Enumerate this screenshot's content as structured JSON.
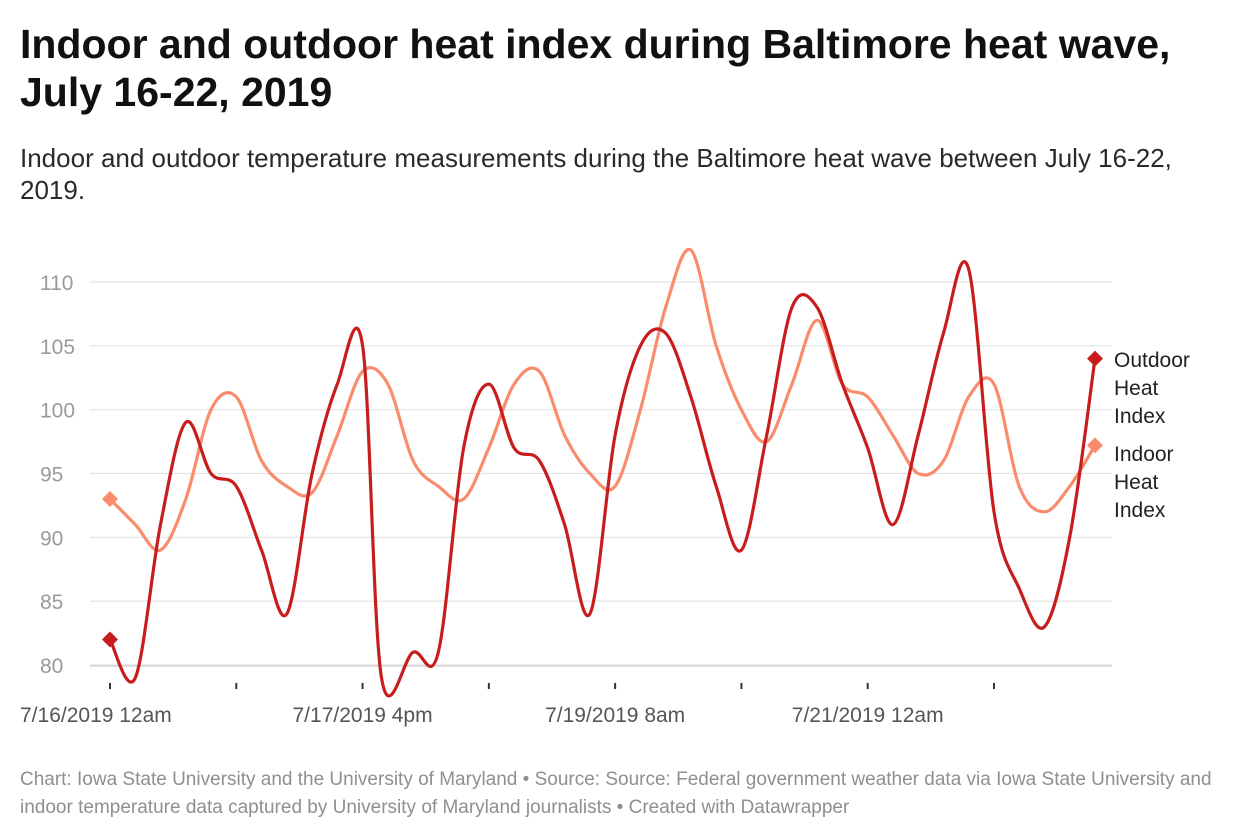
{
  "header": {
    "title": "Indoor and outdoor heat index during Baltimore heat wave, July 16-22, 2019",
    "subtitle": "Indoor and outdoor temperature measurements during the Baltimore heat wave between July 16-22, 2019."
  },
  "footer": {
    "text": "Chart: Iowa State University and the University of Maryland • Source: Source: Federal government weather data via Iowa State University and indoor temperature data captured by University of Maryland journalists • Created with Datawrapper"
  },
  "chart_data": {
    "type": "line",
    "title": "Indoor and outdoor heat index during Baltimore heat wave, July 16-22, 2019",
    "subtitle": "Indoor and outdoor temperature measurements during the Baltimore heat wave between July 16-22, 2019.",
    "xlabel": "",
    "ylabel": "",
    "x_unit": "hours since 7/16/2019 12am",
    "xlim": [
      0,
      156
    ],
    "ylim": [
      79,
      113
    ],
    "yticks": [
      80,
      85,
      90,
      95,
      100,
      105,
      110
    ],
    "xticks": [
      0,
      20,
      40,
      60,
      80,
      100,
      120,
      140
    ],
    "xtick_labels": [
      {
        "x": 0,
        "label": "7/16/2019 12am"
      },
      {
        "x": 40,
        "label": "7/17/2019 4pm"
      },
      {
        "x": 80,
        "label": "7/19/2019 8am"
      },
      {
        "x": 120,
        "label": "7/21/2019 12am"
      }
    ],
    "grid": true,
    "legend": "inline-right",
    "series": [
      {
        "name": "Outdoor Heat Index",
        "color": "#c71e1d",
        "legend_lines": [
          "Outdoor",
          "Heat",
          "Index"
        ],
        "points": [
          [
            0,
            82
          ],
          [
            4,
            79
          ],
          [
            8,
            91
          ],
          [
            12,
            99
          ],
          [
            16,
            95
          ],
          [
            20,
            94
          ],
          [
            24,
            89
          ],
          [
            28,
            84
          ],
          [
            32,
            95
          ],
          [
            36,
            102
          ],
          [
            40,
            105
          ],
          [
            43,
            79
          ],
          [
            48,
            81
          ],
          [
            52,
            81
          ],
          [
            56,
            97
          ],
          [
            60,
            102
          ],
          [
            64,
            97
          ],
          [
            68,
            96
          ],
          [
            72,
            91
          ],
          [
            76,
            84
          ],
          [
            80,
            98
          ],
          [
            84,
            105
          ],
          [
            88,
            106
          ],
          [
            92,
            101
          ],
          [
            96,
            94
          ],
          [
            100,
            89
          ],
          [
            104,
            98
          ],
          [
            108,
            108
          ],
          [
            112,
            108
          ],
          [
            116,
            102
          ],
          [
            120,
            97
          ],
          [
            124,
            91
          ],
          [
            128,
            98
          ],
          [
            132,
            106
          ],
          [
            136,
            111
          ],
          [
            140,
            92
          ],
          [
            144,
            86
          ],
          [
            148,
            83
          ],
          [
            152,
            90
          ],
          [
            156,
            104
          ]
        ]
      },
      {
        "name": "Indoor Heat Index",
        "color": "#fa8c6e",
        "legend_lines": [
          "Indoor",
          "Heat",
          "Index"
        ],
        "points": [
          [
            0,
            93
          ],
          [
            4,
            91
          ],
          [
            8,
            89
          ],
          [
            12,
            93
          ],
          [
            16,
            100
          ],
          [
            20,
            101
          ],
          [
            24,
            96
          ],
          [
            28,
            94
          ],
          [
            32,
            93.5
          ],
          [
            36,
            98
          ],
          [
            40,
            103
          ],
          [
            44,
            102
          ],
          [
            48,
            96
          ],
          [
            52,
            94
          ],
          [
            56,
            93
          ],
          [
            60,
            97
          ],
          [
            64,
            102
          ],
          [
            68,
            103
          ],
          [
            72,
            98
          ],
          [
            76,
            95
          ],
          [
            80,
            94
          ],
          [
            84,
            100
          ],
          [
            88,
            108
          ],
          [
            92,
            112.5
          ],
          [
            96,
            105
          ],
          [
            100,
            100
          ],
          [
            104,
            97.5
          ],
          [
            108,
            102
          ],
          [
            112,
            107
          ],
          [
            116,
            102
          ],
          [
            120,
            101
          ],
          [
            124,
            98
          ],
          [
            128,
            95
          ],
          [
            132,
            96
          ],
          [
            136,
            101
          ],
          [
            140,
            102
          ],
          [
            144,
            94
          ],
          [
            148,
            92
          ],
          [
            152,
            94
          ],
          [
            156,
            97.2
          ]
        ]
      }
    ]
  }
}
